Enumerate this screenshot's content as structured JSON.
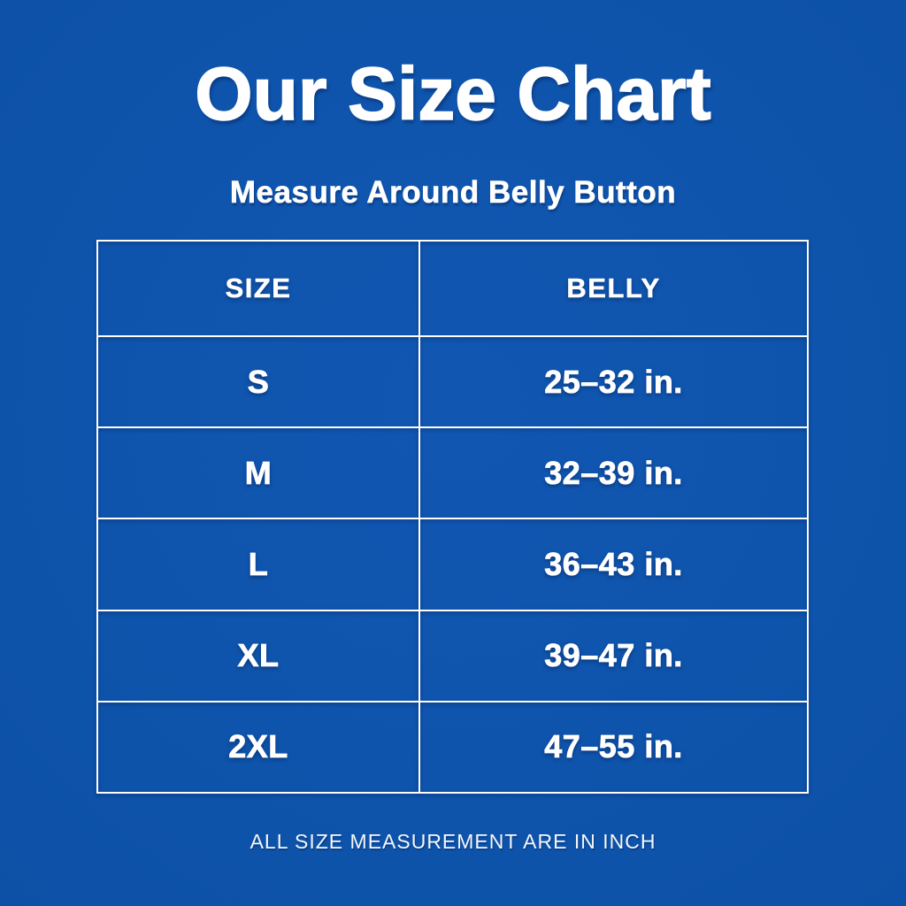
{
  "header": {
    "title": "Our Size Chart",
    "subtitle": "Measure Around Belly Button"
  },
  "footer": {
    "note": "ALL SIZE MEASUREMENT ARE IN INCH"
  },
  "colors": {
    "background": "#0d52a8",
    "text": "#ffffff",
    "table_border": "#ffffff",
    "shadow": "#052052"
  },
  "chart_data": {
    "type": "table",
    "title": "Our Size Chart",
    "subtitle": "Measure Around Belly Button",
    "columns": [
      "SIZE",
      "BELLY"
    ],
    "rows": [
      [
        "S",
        "25–32 in."
      ],
      [
        "M",
        "32–39 in."
      ],
      [
        "L",
        "36–43 in."
      ],
      [
        "XL",
        "39–47 in."
      ],
      [
        "2XL",
        "47–55 in."
      ]
    ],
    "units": "inch",
    "footnote": "ALL SIZE MEASUREMENT ARE IN INCH"
  }
}
